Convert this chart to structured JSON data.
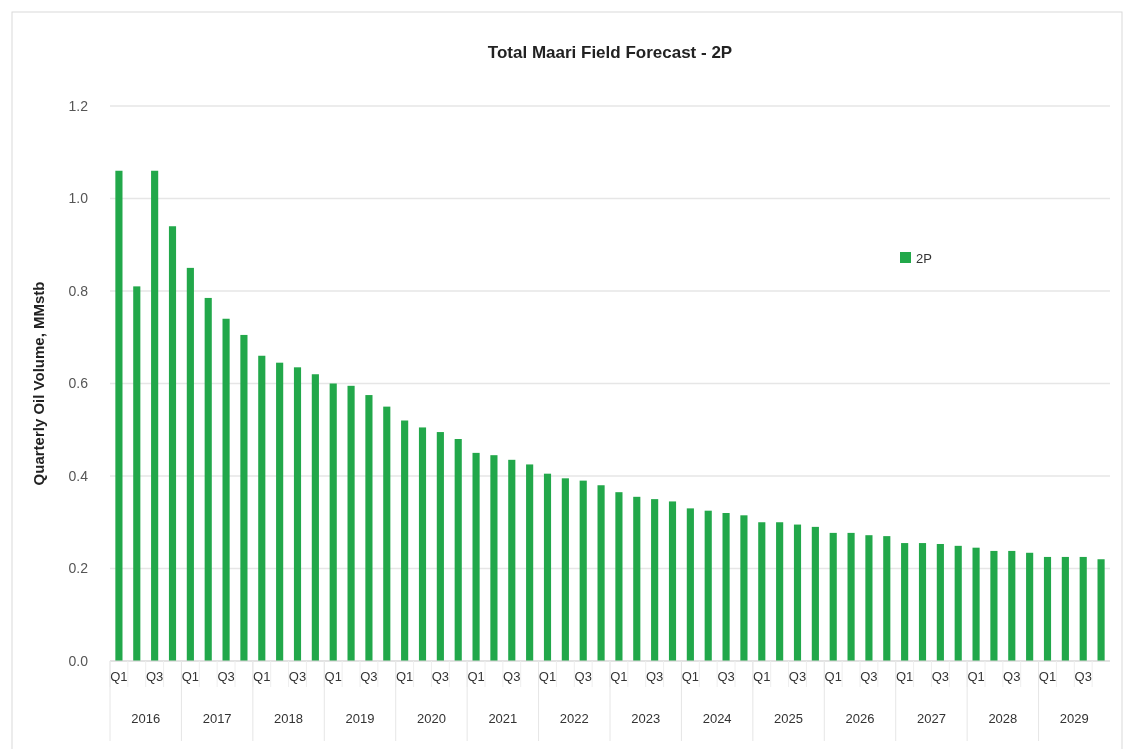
{
  "chart_data": {
    "type": "bar",
    "title": "Total Maari Field Forecast - 2P",
    "ylabel": "Quarterly Oil Volume, MMstb",
    "categories": [
      "Q1",
      null,
      "Q3",
      null,
      "Q1",
      null,
      "Q3",
      null,
      "Q1",
      null,
      "Q3",
      null,
      "Q1",
      null,
      "Q3",
      null,
      "Q1",
      null,
      "Q3",
      null,
      "Q1",
      null,
      "Q3",
      null,
      "Q1",
      null,
      "Q3",
      null,
      "Q1",
      null,
      "Q3",
      null,
      "Q1",
      null,
      "Q3",
      null,
      "Q1",
      null,
      "Q3",
      null,
      "Q1",
      null,
      "Q3",
      null,
      "Q1",
      null,
      "Q3",
      null,
      "Q1",
      null,
      "Q3",
      null,
      "Q1",
      null,
      "Q3",
      null
    ],
    "series": [
      {
        "name": "2P",
        "color": "#22a84a",
        "values": [
          1.06,
          0.81,
          1.06,
          0.94,
          0.85,
          0.785,
          0.74,
          0.705,
          0.66,
          0.645,
          0.635,
          0.62,
          0.6,
          0.595,
          0.575,
          0.55,
          0.52,
          0.505,
          0.495,
          0.48,
          0.45,
          0.445,
          0.435,
          0.425,
          0.405,
          0.395,
          0.39,
          0.38,
          0.365,
          0.355,
          0.35,
          0.345,
          0.33,
          0.325,
          0.32,
          0.315,
          0.3,
          0.3,
          0.295,
          0.29,
          0.277,
          0.277,
          0.272,
          0.27,
          0.255,
          0.255,
          0.253,
          0.249,
          0.245,
          0.238,
          0.238,
          0.234,
          0.225,
          0.225,
          0.225,
          0.22
        ]
      }
    ],
    "annotations": [
      "2016",
      "2017",
      "2018",
      "2019",
      "2020",
      "2021",
      "2022",
      "2023",
      "2024",
      "2025",
      "2026",
      "2027",
      "2028",
      "2029"
    ],
    "ylim": [
      0,
      1.2
    ],
    "yticks": [
      {
        "value": 0,
        "label": "0.0"
      },
      {
        "value": 0.2,
        "label": "0.2"
      },
      {
        "value": 0.4,
        "label": "0.4"
      },
      {
        "value": 0.6,
        "label": "0.6"
      },
      {
        "value": 0.8,
        "label": "0.8"
      },
      {
        "value": 1,
        "label": "1.0"
      },
      {
        "value": 1.2,
        "label": "1.2"
      }
    ],
    "grid": "y",
    "legend": "right"
  }
}
